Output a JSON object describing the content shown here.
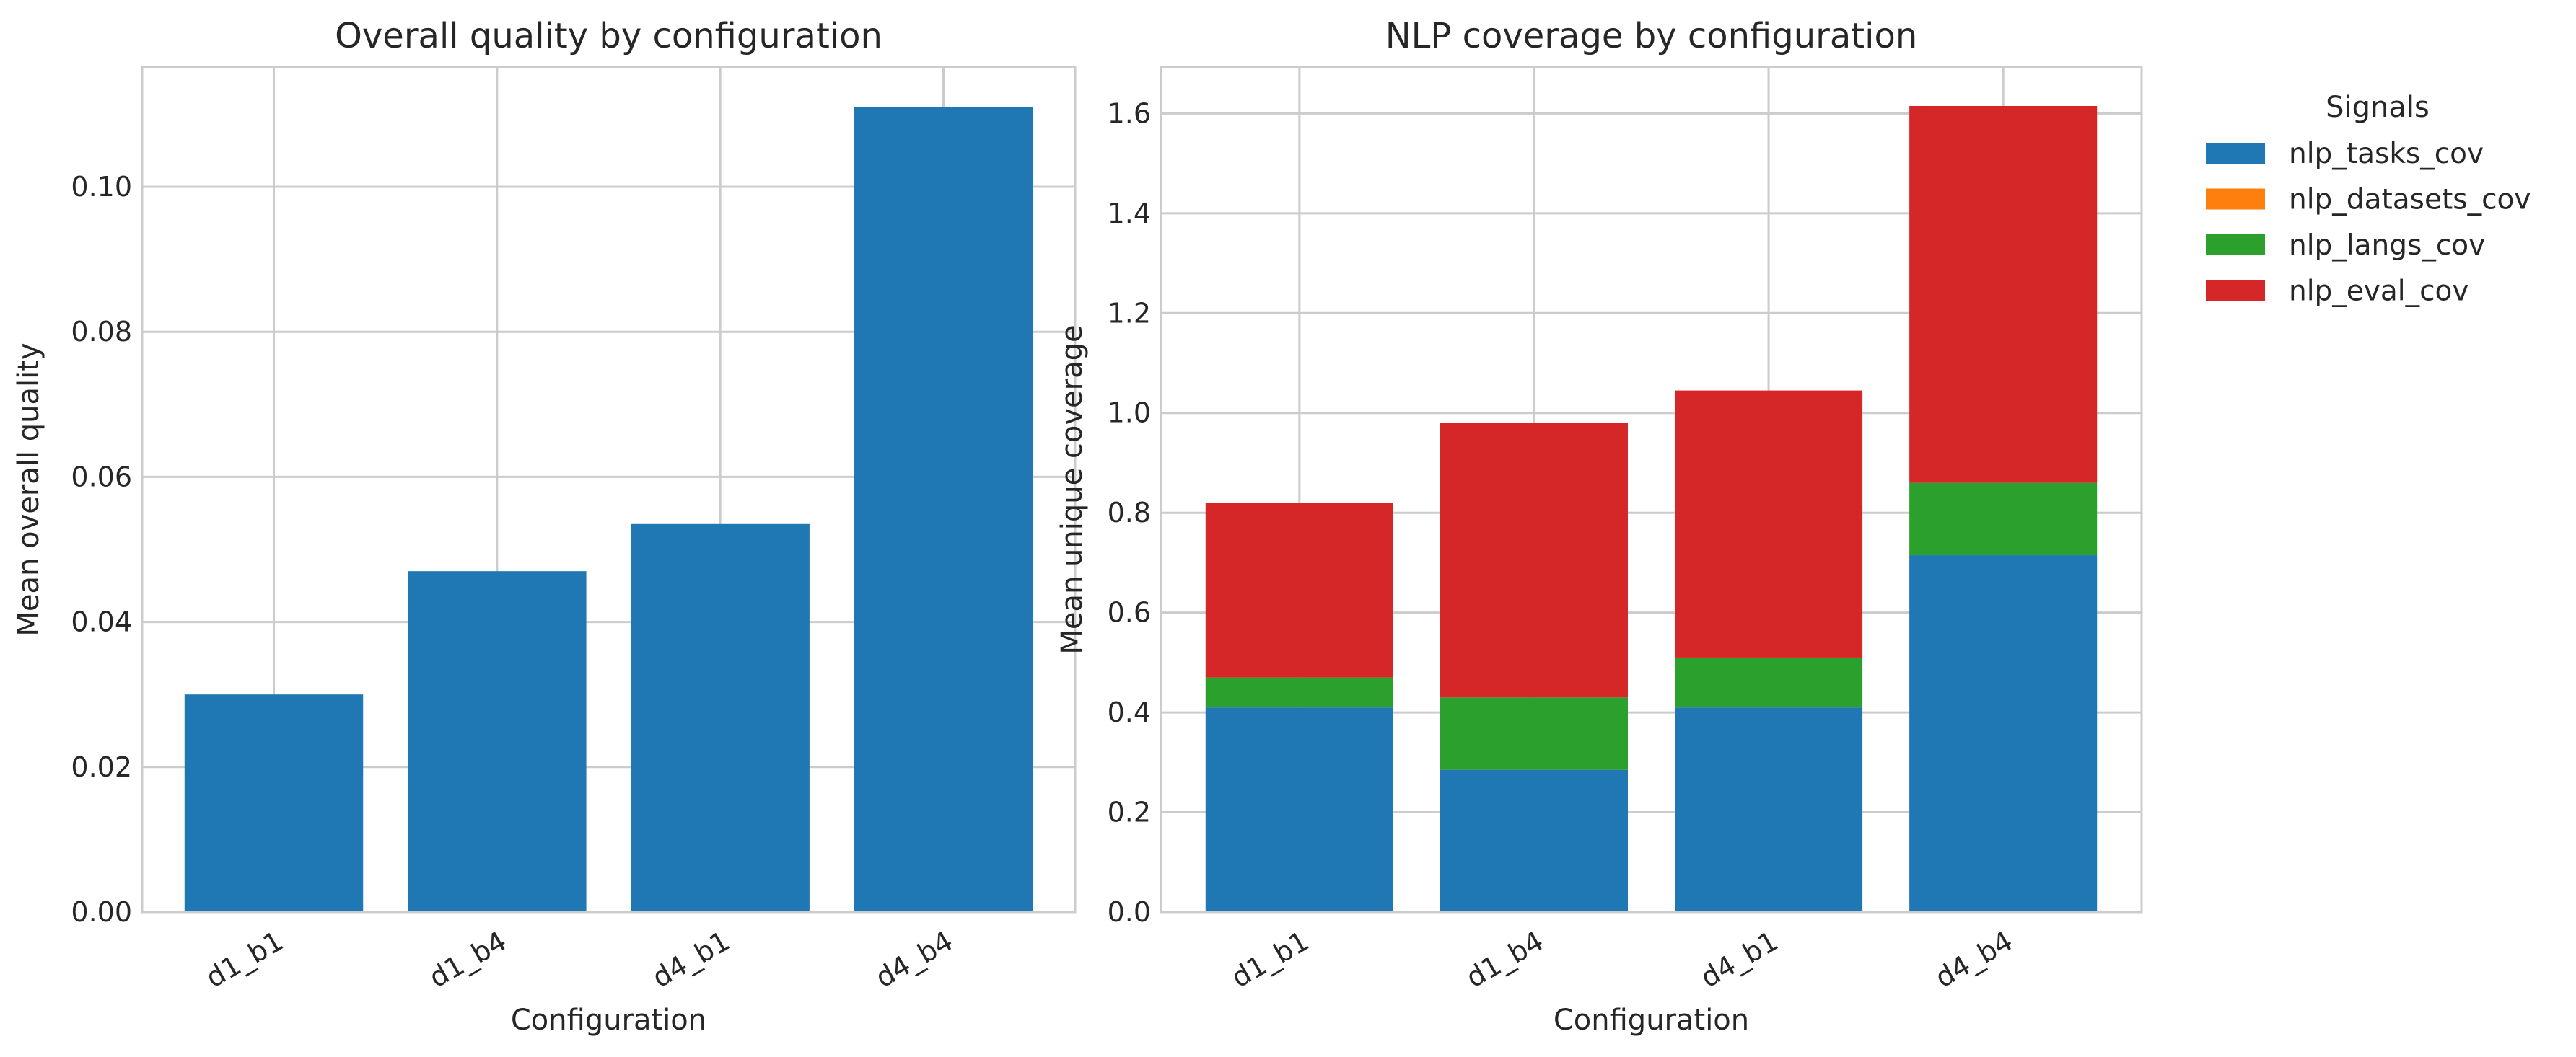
{
  "chart_data": [
    {
      "type": "bar",
      "title": "Overall quality by configuration",
      "xlabel": "Configuration",
      "ylabel": "Mean overall quality",
      "categories": [
        "d1_b1",
        "d1_b4",
        "d4_b1",
        "d4_b4"
      ],
      "values": [
        0.03,
        0.047,
        0.0535,
        0.111
      ],
      "ylim": [
        0,
        0.1165
      ],
      "yticks": [
        "0.00",
        "0.02",
        "0.04",
        "0.06",
        "0.08",
        "0.10"
      ],
      "color": "#1f77b4",
      "grid": true
    },
    {
      "type": "bar",
      "stacked": true,
      "title": "NLP coverage by configuration",
      "xlabel": "Configuration",
      "ylabel": "Mean unique coverage",
      "categories": [
        "d1_b1",
        "d1_b4",
        "d4_b1",
        "d4_b4"
      ],
      "ylim": [
        0,
        1.693
      ],
      "yticks": [
        "0.0",
        "0.2",
        "0.4",
        "0.6",
        "0.8",
        "1.0",
        "1.2",
        "1.4",
        "1.6"
      ],
      "legend_title": "Signals",
      "legend_position": "outside right, top",
      "grid": true,
      "series": [
        {
          "name": "nlp_tasks_cov",
          "color": "#1f77b4",
          "values": [
            0.41,
            0.285,
            0.41,
            0.715
          ]
        },
        {
          "name": "nlp_datasets_cov",
          "color": "#ff7f0e",
          "values": [
            0,
            0,
            0,
            0
          ]
        },
        {
          "name": "nlp_langs_cov",
          "color": "#2ca02c",
          "values": [
            0.06,
            0.145,
            0.1,
            0.145
          ]
        },
        {
          "name": "nlp_eval_cov",
          "color": "#d62728",
          "values": [
            0.35,
            0.55,
            0.535,
            0.755
          ]
        }
      ]
    }
  ]
}
